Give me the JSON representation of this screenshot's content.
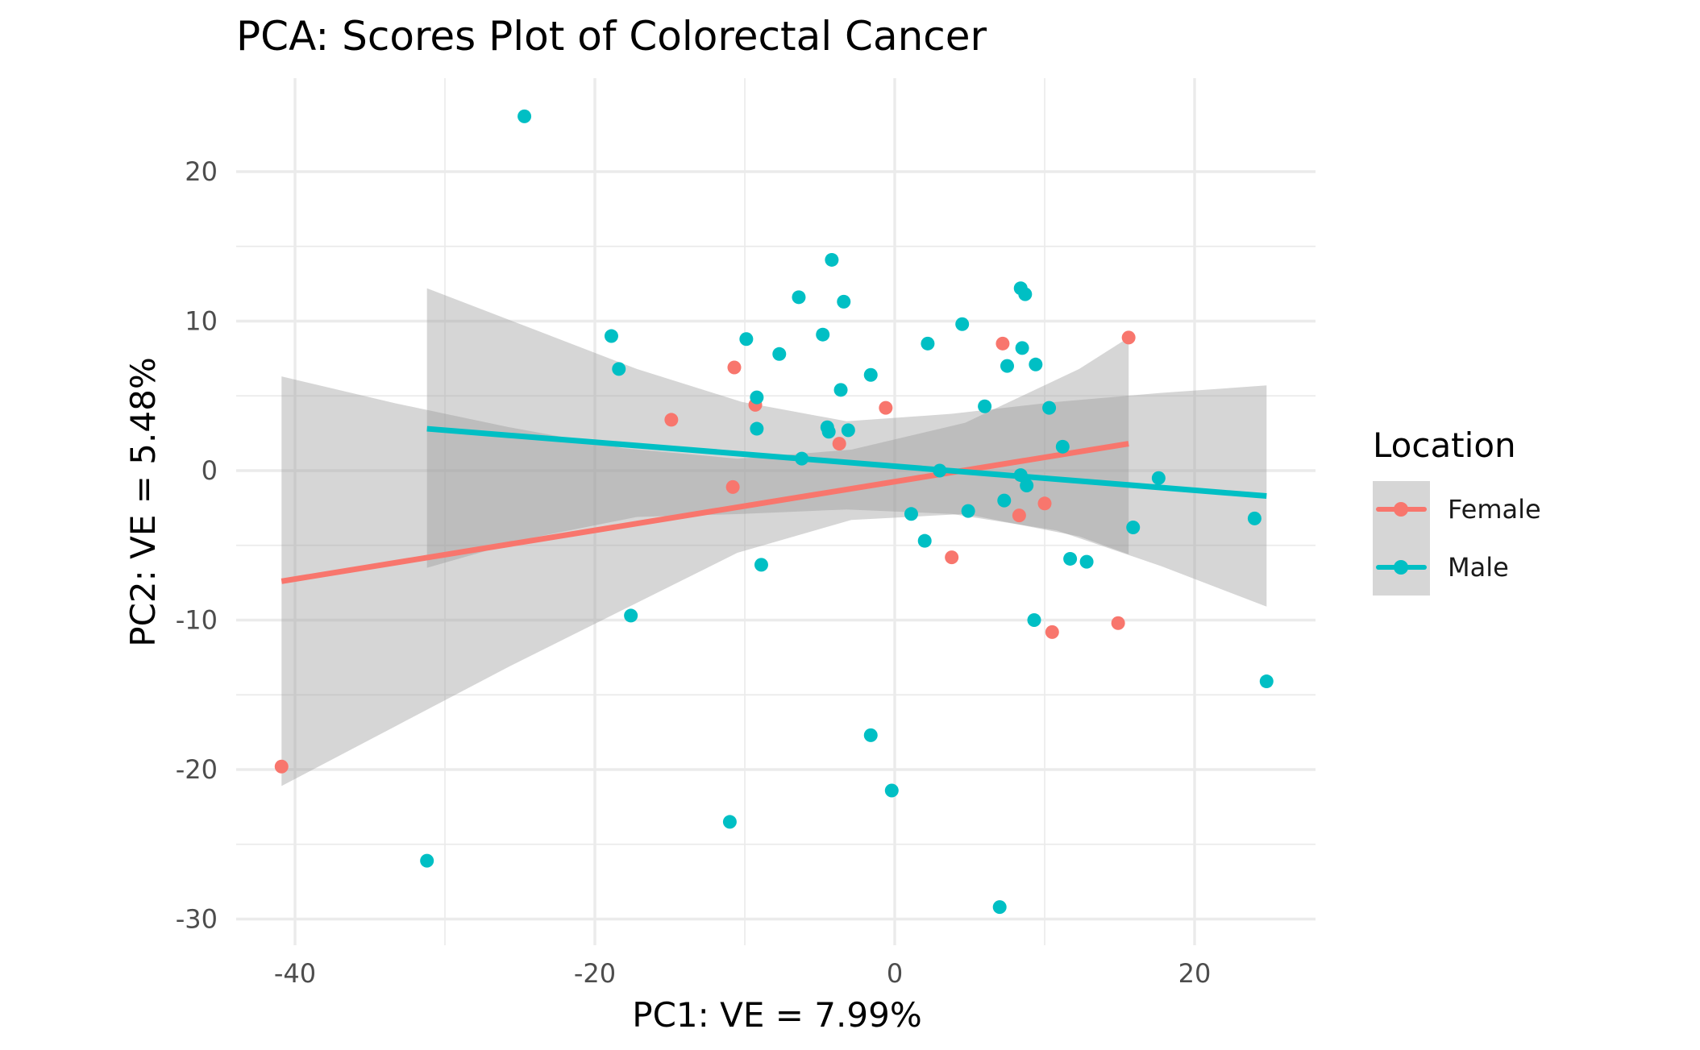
{
  "chart_data": {
    "type": "scatter",
    "title": "PCA: Scores Plot of Colorectal Cancer",
    "xlabel": "PC1: VE = 7.99%",
    "ylabel": "PC2: VE = 5.48%",
    "xlim": [
      -44,
      28
    ],
    "ylim": [
      -31,
      25.5
    ],
    "x_ticks": [
      -40,
      -20,
      0,
      20
    ],
    "y_ticks": [
      -30,
      -20,
      -10,
      0,
      10,
      20
    ],
    "x_tick_labels": [
      "-40",
      "-20",
      "0",
      "20"
    ],
    "y_tick_labels": [
      "-30",
      "-20",
      "-10",
      "0",
      "10",
      "20"
    ],
    "grid": true,
    "legend": {
      "title": "Location",
      "position": "right"
    },
    "series": [
      {
        "name": "Female",
        "color": "#F8766D",
        "points": [
          [
            -40.9,
            -19.8
          ],
          [
            -14.9,
            3.4
          ],
          [
            -10.7,
            6.9
          ],
          [
            -10.8,
            -1.1
          ],
          [
            -9.3,
            4.4
          ],
          [
            -3.7,
            1.8
          ],
          [
            -0.6,
            4.2
          ],
          [
            3.8,
            -5.8
          ],
          [
            7.2,
            8.5
          ],
          [
            8.3,
            -3.0
          ],
          [
            10.0,
            -2.2
          ],
          [
            10.5,
            -10.8
          ],
          [
            14.9,
            -10.2
          ],
          [
            15.6,
            8.9
          ]
        ],
        "fit": {
          "x_start": -40.9,
          "y_start": -7.4,
          "x_end": 15.6,
          "y_end": 1.8
        },
        "band": {
          "x": [
            -40.9,
            -33.3,
            -25.7,
            -18.1,
            -10.5,
            -2.9,
            4.7,
            12.3,
            15.6
          ],
          "upper": [
            6.3,
            4.5,
            2.9,
            1.5,
            0.8,
            1.4,
            3.2,
            6.8,
            8.9
          ],
          "lower": [
            -21.1,
            -17.1,
            -13.1,
            -9.3,
            -5.5,
            -3.3,
            -2.9,
            -4.4,
            -5.6
          ]
        }
      },
      {
        "name": "Male",
        "color": "#00BFC4",
        "points": [
          [
            -31.2,
            -26.1
          ],
          [
            -24.7,
            23.7
          ],
          [
            -18.9,
            9.0
          ],
          [
            -18.4,
            6.8
          ],
          [
            -17.6,
            -9.7
          ],
          [
            -11.0,
            -23.5
          ],
          [
            -9.9,
            8.8
          ],
          [
            -9.2,
            4.9
          ],
          [
            -9.2,
            2.8
          ],
          [
            -8.9,
            -6.3
          ],
          [
            -7.7,
            7.8
          ],
          [
            -6.4,
            11.6
          ],
          [
            -6.2,
            0.8
          ],
          [
            -4.8,
            9.1
          ],
          [
            -4.5,
            2.9
          ],
          [
            -4.4,
            2.6
          ],
          [
            -4.2,
            14.1
          ],
          [
            -3.6,
            5.4
          ],
          [
            -3.4,
            11.3
          ],
          [
            -3.1,
            2.7
          ],
          [
            -1.6,
            6.4
          ],
          [
            -1.6,
            -17.7
          ],
          [
            -0.2,
            -21.4
          ],
          [
            1.1,
            -2.9
          ],
          [
            2.0,
            -4.7
          ],
          [
            2.2,
            8.5
          ],
          [
            3.0,
            0.0
          ],
          [
            4.5,
            9.8
          ],
          [
            4.9,
            -2.7
          ],
          [
            6.0,
            4.3
          ],
          [
            7.0,
            -29.2
          ],
          [
            7.3,
            -2.0
          ],
          [
            7.5,
            7.0
          ],
          [
            8.4,
            -0.3
          ],
          [
            8.4,
            12.2
          ],
          [
            8.5,
            8.2
          ],
          [
            8.7,
            11.8
          ],
          [
            8.8,
            -1.0
          ],
          [
            9.3,
            -10.0
          ],
          [
            9.4,
            7.1
          ],
          [
            10.3,
            4.2
          ],
          [
            11.2,
            1.6
          ],
          [
            11.7,
            -5.9
          ],
          [
            12.8,
            -6.1
          ],
          [
            15.9,
            -3.8
          ],
          [
            17.6,
            -0.5
          ],
          [
            24.0,
            -3.2
          ],
          [
            24.8,
            -14.1
          ]
        ],
        "fit": {
          "x_start": -31.2,
          "y_start": 2.8,
          "x_end": 24.8,
          "y_end": -1.7
        },
        "band": {
          "x": [
            -31.2,
            -24.2,
            -17.2,
            -10.2,
            -3.2,
            3.8,
            10.8,
            17.8,
            24.8
          ],
          "upper": [
            12.2,
            9.5,
            6.8,
            4.6,
            3.3,
            3.8,
            4.6,
            5.2,
            5.7
          ],
          "lower": [
            -6.5,
            -4.5,
            -3.1,
            -2.9,
            -2.6,
            -2.9,
            -4.0,
            -6.4,
            -9.1
          ]
        }
      }
    ]
  }
}
